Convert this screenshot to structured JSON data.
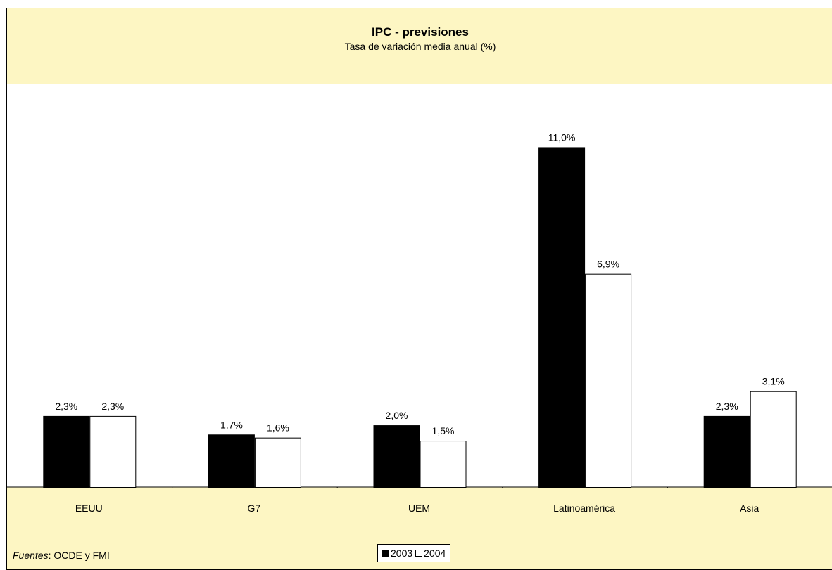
{
  "chart_data": {
    "type": "bar",
    "title": "IPC - previsiones",
    "subtitle": "Tasa de variación media anual (%)",
    "categories": [
      "EEUU",
      "G7",
      "UEM",
      "Latinoamérica",
      "Asia"
    ],
    "series": [
      {
        "name": "2003",
        "values": [
          2.3,
          1.7,
          2.0,
          11.0,
          2.3
        ],
        "labels": [
          "2,3%",
          "1,7%",
          "2,0%",
          "11,0%",
          "2,3%"
        ],
        "color": "#000000"
      },
      {
        "name": "2004",
        "values": [
          2.3,
          1.6,
          1.5,
          6.9,
          3.1
        ],
        "labels": [
          "2,3%",
          "1,6%",
          "1,5%",
          "6,9%",
          "3,1%"
        ],
        "color": "#ffffff"
      }
    ],
    "ylim": [
      0,
      12
    ],
    "grid": false,
    "legend_position": "bottom"
  },
  "source": {
    "label": "Fuentes",
    "text": ": OCDE y FMI"
  },
  "colors": {
    "background": "#fdf6c3",
    "plot": "#ffffff",
    "border": "#000000"
  }
}
